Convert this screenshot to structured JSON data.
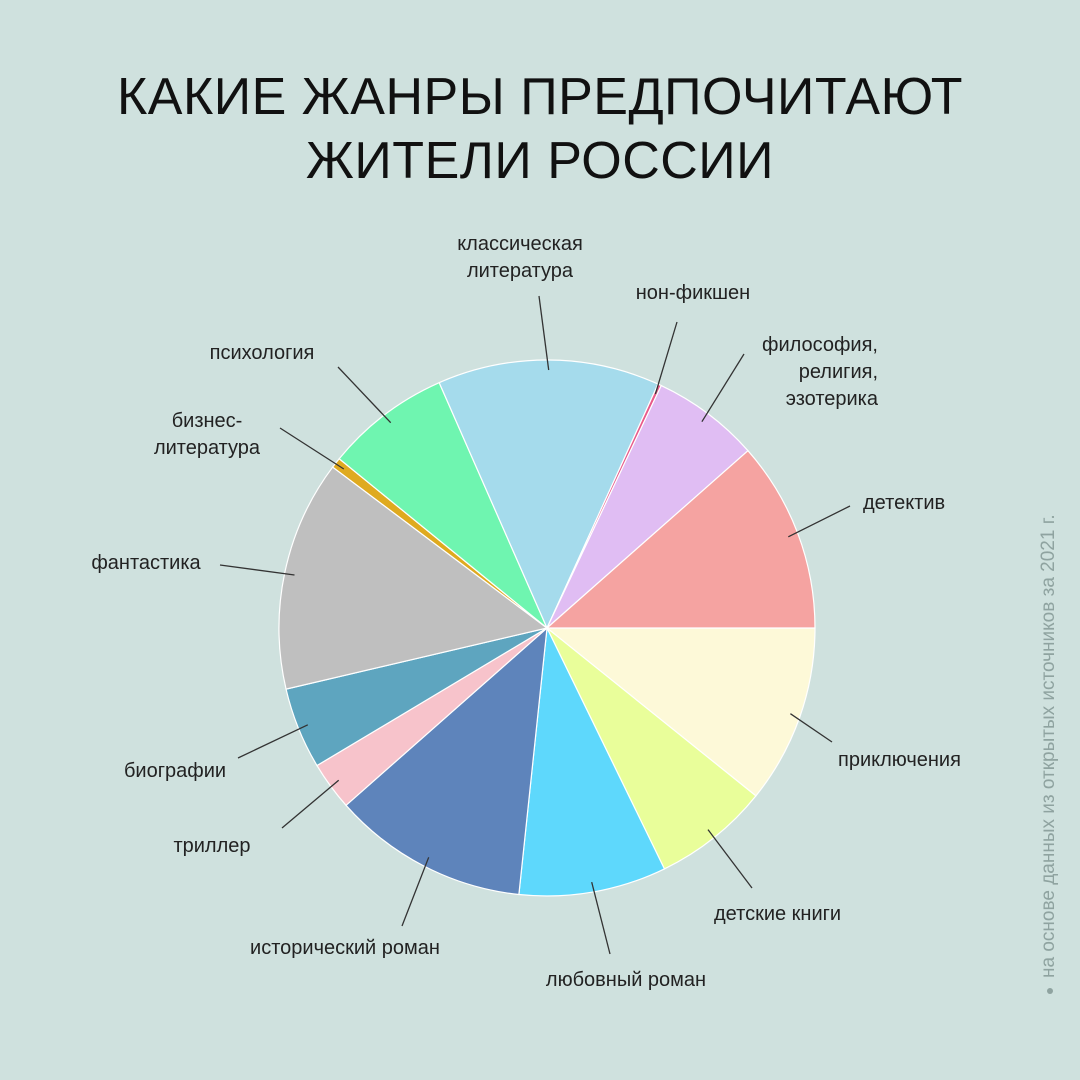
{
  "title": {
    "line1": "КАКИЕ ЖАНРЫ ПРЕДПОЧИТАЮТ",
    "line2": "ЖИТЕЛИ РОССИИ"
  },
  "source_note": "на основе данных из открытых источников за 2021 г.",
  "chart_data": {
    "type": "pie",
    "title": "КАКИЕ ЖАНРЫ ПРЕДПОЧИТАЮТ ЖИТЕЛИ РОССИИ",
    "start": "3 o'clock",
    "direction": "clockwise",
    "slices": [
      {
        "label": "приключения",
        "value": 10.3,
        "color": "#fdf9d8"
      },
      {
        "label": "детские книги",
        "value": 6.7,
        "color": "#e9fe9a"
      },
      {
        "label": "любовный роман",
        "value": 8.5,
        "color": "#5ed8fc"
      },
      {
        "label": "исторический роман",
        "value": 11.3,
        "color": "#5e84bb"
      },
      {
        "label": "триллер",
        "value": 2.8,
        "color": "#f7c3cb"
      },
      {
        "label": "биографии",
        "value": 4.7,
        "color": "#5ea5bf"
      },
      {
        "label": "фантастика",
        "value": 13.3,
        "color": "#bfbfbf"
      },
      {
        "label": "бизнес-\nлитература",
        "value": 0.6,
        "color": "#dfaa1f"
      },
      {
        "label": "психология",
        "value": 7.2,
        "color": "#6ff5b0"
      },
      {
        "label": "классическая\nлитература",
        "value": 12.8,
        "color": "#a5dbec"
      },
      {
        "label": "нон-фикшен",
        "value": 0.2,
        "color": "#e85a8a"
      },
      {
        "label": "философия,\nрелигия,\nэзотерика",
        "value": 6.2,
        "color": "#e0bdf3"
      },
      {
        "label": "детектив",
        "value": 11.0,
        "color": "#f5a3a1"
      }
    ]
  }
}
